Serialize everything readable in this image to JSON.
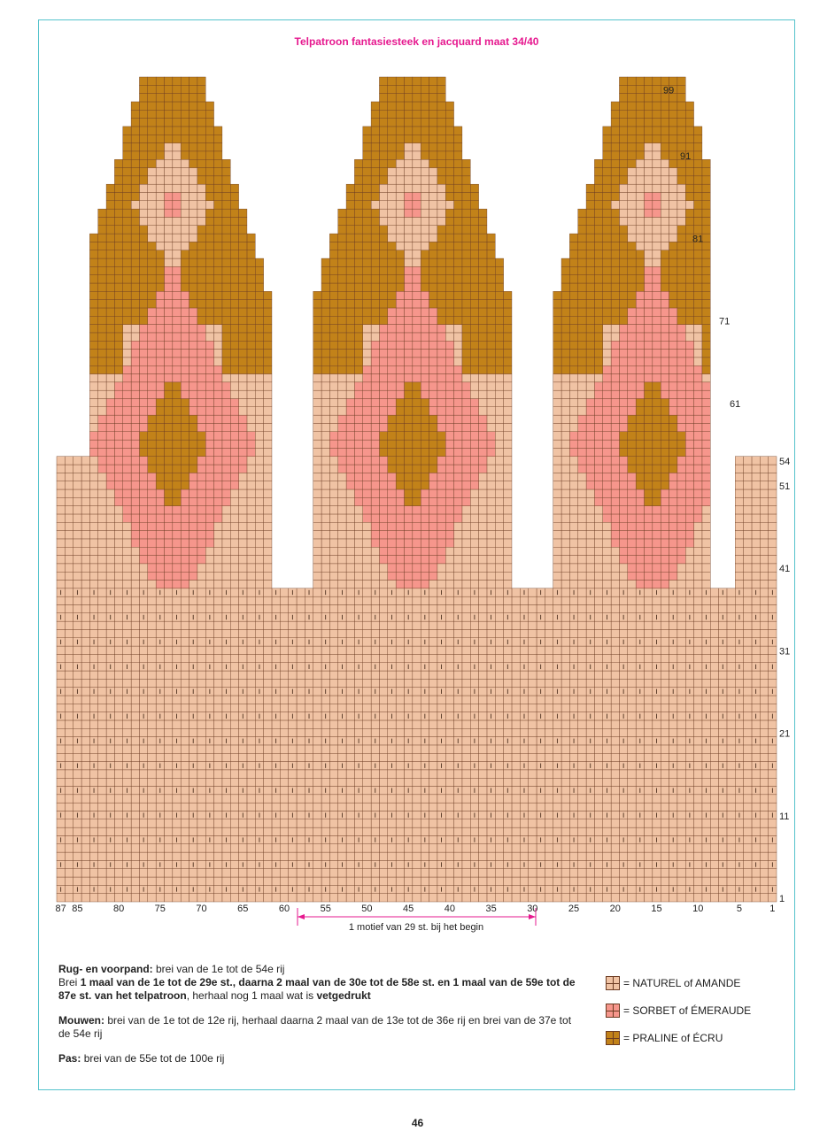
{
  "title": "Telpatroon fantasiesteek en jacquard maat 34/40",
  "colors": {
    "naturel": "#f0c3a4",
    "sorbet": "#f6968c",
    "praline": "#c28219",
    "grid_line": "#6b3b22",
    "title": "#e6198f",
    "frame": "#55c3cc"
  },
  "row_labels": [
    "1",
    "11",
    "21",
    "31",
    "41",
    "51",
    "54",
    "61",
    "71",
    "81",
    "91",
    "99"
  ],
  "column_labels": [
    "87",
    "85",
    "80",
    "75",
    "70",
    "65",
    "60",
    "55",
    "50",
    "45",
    "40",
    "35",
    "30",
    "25",
    "20",
    "15",
    "10",
    "5",
    "1"
  ],
  "motif_label": "1 motief van 29 st. bij het begin",
  "instructions": {
    "rug_heading": "Rug- en voorpand:",
    "rug_text": " brei van de 1e tot de 54e rij",
    "brei_1": "Brei ",
    "brei_2": "1 maal van de 1e tot de 29e st., daarna 2 maal van de 30e tot de 58e st. en 1 maal van de 59e tot de 87e st. van het telpatroon",
    "brei_3": ", herhaal nog 1 maal wat is ",
    "brei_4": "vetgedrukt",
    "mouwen_heading": "Mouwen:",
    "mouwen_text": " brei van de 1e tot de 12e rij, herhaal daarna 2 maal van de 13e tot de 36e rij en brei van de 37e tot de 54e rij",
    "pas_heading": "Pas:",
    "pas_text": " brei van de 55e tot de 100e rij"
  },
  "legend": [
    {
      "label": "= NATUREL of AMANDE",
      "color": "#f0c3a4"
    },
    {
      "label": "= SORBET of ÉMERAUDE",
      "color": "#f6968c"
    },
    {
      "label": "= PRALINE of ÉCRU",
      "color": "#c28219"
    }
  ],
  "page_number": "46"
}
